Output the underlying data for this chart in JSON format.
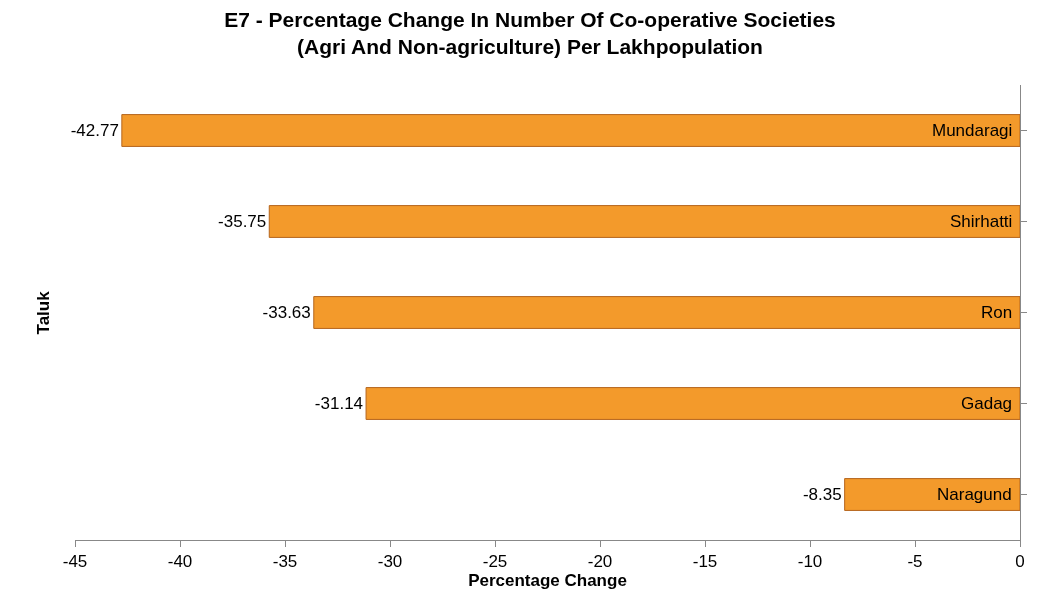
{
  "chart_data": {
    "type": "bar",
    "orientation": "horizontal",
    "title": "E7 - Percentage Change In Number Of Co-operative Societies\n(Agri And Non-agriculture) Per Lakhpopulation",
    "xlabel": "Percentage Change",
    "ylabel": "Taluk",
    "categories": [
      "Mundaragi",
      "Shirhatti",
      "Ron",
      "Gadag",
      "Naragund"
    ],
    "values": [
      -42.77,
      -35.75,
      -33.63,
      -31.14,
      -8.35
    ],
    "color": "#f39a2b",
    "xlim": [
      -45,
      0
    ],
    "xticks": [
      -45,
      -40,
      -35,
      -30,
      -25,
      -20,
      -15,
      -10,
      -5,
      0
    ],
    "data_labels": true,
    "legend": false
  }
}
